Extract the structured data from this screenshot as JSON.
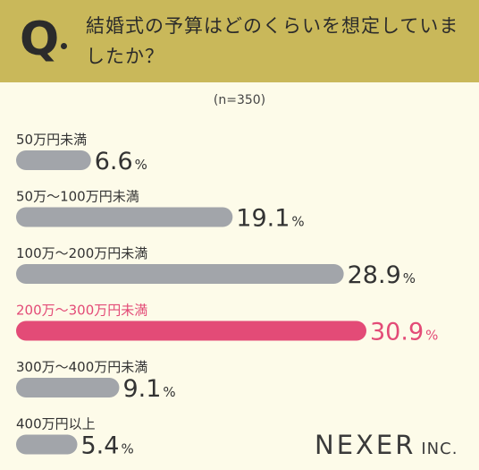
{
  "question": {
    "mark": "Q",
    "text": "結婚式の予算はどのくらいを想定していましたか？"
  },
  "sample_size": "(n=350)",
  "brand": {
    "name": "NEXER",
    "suffix": "INC."
  },
  "colors": {
    "bar": "#a2a5aa",
    "highlight": "#e34b77",
    "header": "#c9b85a",
    "background": "#fdfbe9"
  },
  "chart_data": {
    "type": "bar",
    "orientation": "horizontal",
    "title": "",
    "categories": [
      "50万円未満",
      "50万～100万円未満",
      "100万～200万円未満",
      "200万～300万円未満",
      "300万～400万円未満",
      "400万円以上"
    ],
    "values": [
      6.6,
      19.1,
      28.9,
      30.9,
      9.1,
      5.4
    ],
    "value_labels": [
      "6.6",
      "19.1",
      "28.9",
      "30.9",
      "9.1",
      "5.4"
    ],
    "unit": "%",
    "highlight_index": 3,
    "xlim": [
      0,
      30.9
    ]
  }
}
